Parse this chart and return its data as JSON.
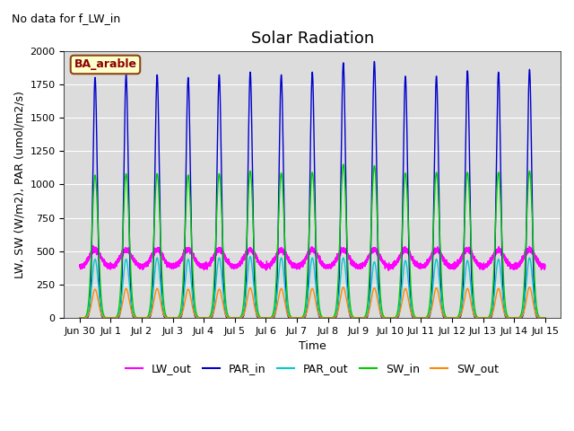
{
  "title": "Solar Radiation",
  "ylabel": "LW, SW (W/m2), PAR (umol/m2/s)",
  "xlabel": "Time",
  "no_data_text": "No data for f_LW_in",
  "legend_label": "BA_arable",
  "ylim": [
    0,
    2000
  ],
  "xlim_start": -0.5,
  "xlim_end": 15.5,
  "xtick_positions": [
    0,
    1,
    2,
    3,
    4,
    5,
    6,
    7,
    8,
    9,
    10,
    11,
    12,
    13,
    14,
    15
  ],
  "xtick_labels": [
    "Jun 30",
    "Jul 1",
    "Jul 2",
    "Jul 3",
    "Jul 4",
    "Jul 5",
    "Jul 6",
    "Jul 7",
    "Jul 8",
    "Jul 9",
    "Jul 10",
    "Jul 11",
    "Jul 12",
    "Jul 13",
    "Jul 14",
    "Jul 15"
  ],
  "bg_color": "#dcdcdc",
  "series": {
    "LW_out": {
      "color": "#ff00ff",
      "lw": 1.0
    },
    "PAR_in": {
      "color": "#0000cc",
      "lw": 1.0
    },
    "PAR_out": {
      "color": "#00cccc",
      "lw": 1.0
    },
    "SW_in": {
      "color": "#00cc00",
      "lw": 1.0
    },
    "SW_out": {
      "color": "#ff8800",
      "lw": 1.0
    }
  },
  "n_days": 15,
  "pts_per_day": 480,
  "PAR_in_peaks": [
    1800,
    1820,
    1820,
    1800,
    1820,
    1840,
    1820,
    1840,
    1910,
    1920,
    1810,
    1810,
    1850,
    1840,
    1860
  ],
  "PAR_out_peaks": [
    440,
    440,
    450,
    440,
    450,
    460,
    450,
    450,
    450,
    420,
    430,
    440,
    430,
    440,
    450
  ],
  "SW_in_peaks": [
    1070,
    1080,
    1080,
    1070,
    1080,
    1100,
    1085,
    1090,
    1150,
    1140,
    1085,
    1090,
    1090,
    1090,
    1100
  ],
  "SW_out_peaks": [
    215,
    220,
    220,
    215,
    215,
    225,
    220,
    220,
    230,
    225,
    220,
    225,
    220,
    220,
    230
  ],
  "LW_out_base": 380,
  "title_fontsize": 13,
  "axis_label_fontsize": 9,
  "tick_fontsize": 8
}
